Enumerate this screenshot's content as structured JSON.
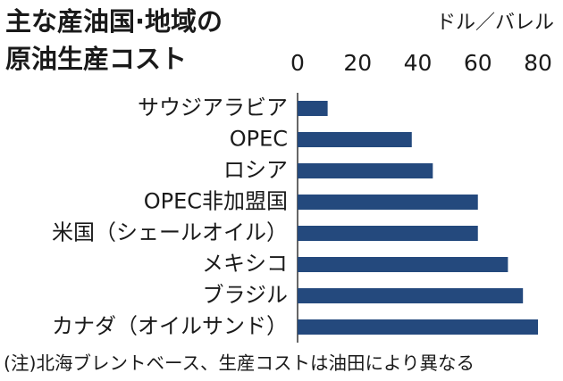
{
  "chart_data": {
    "type": "bar",
    "orientation": "horizontal",
    "title": [
      "主な産油国·地域の",
      "原油生産コスト"
    ],
    "unit": "ドル／バレル",
    "note": "(注)北海ブレントベース、生産コストは油田により異なる",
    "categories": [
      "サウジアラビア",
      "OPEC",
      "ロシア",
      "OPEC非加盟国",
      "米国（シェールオイル）",
      "メキシコ",
      "ブラジル",
      "カナダ（オイルサンド）"
    ],
    "values": [
      10,
      38,
      45,
      60,
      60,
      70,
      75,
      80
    ],
    "color": "#24497d",
    "xlim": [
      0,
      80
    ],
    "xticks": [
      0,
      20,
      40,
      60,
      80
    ],
    "grid": false
  }
}
